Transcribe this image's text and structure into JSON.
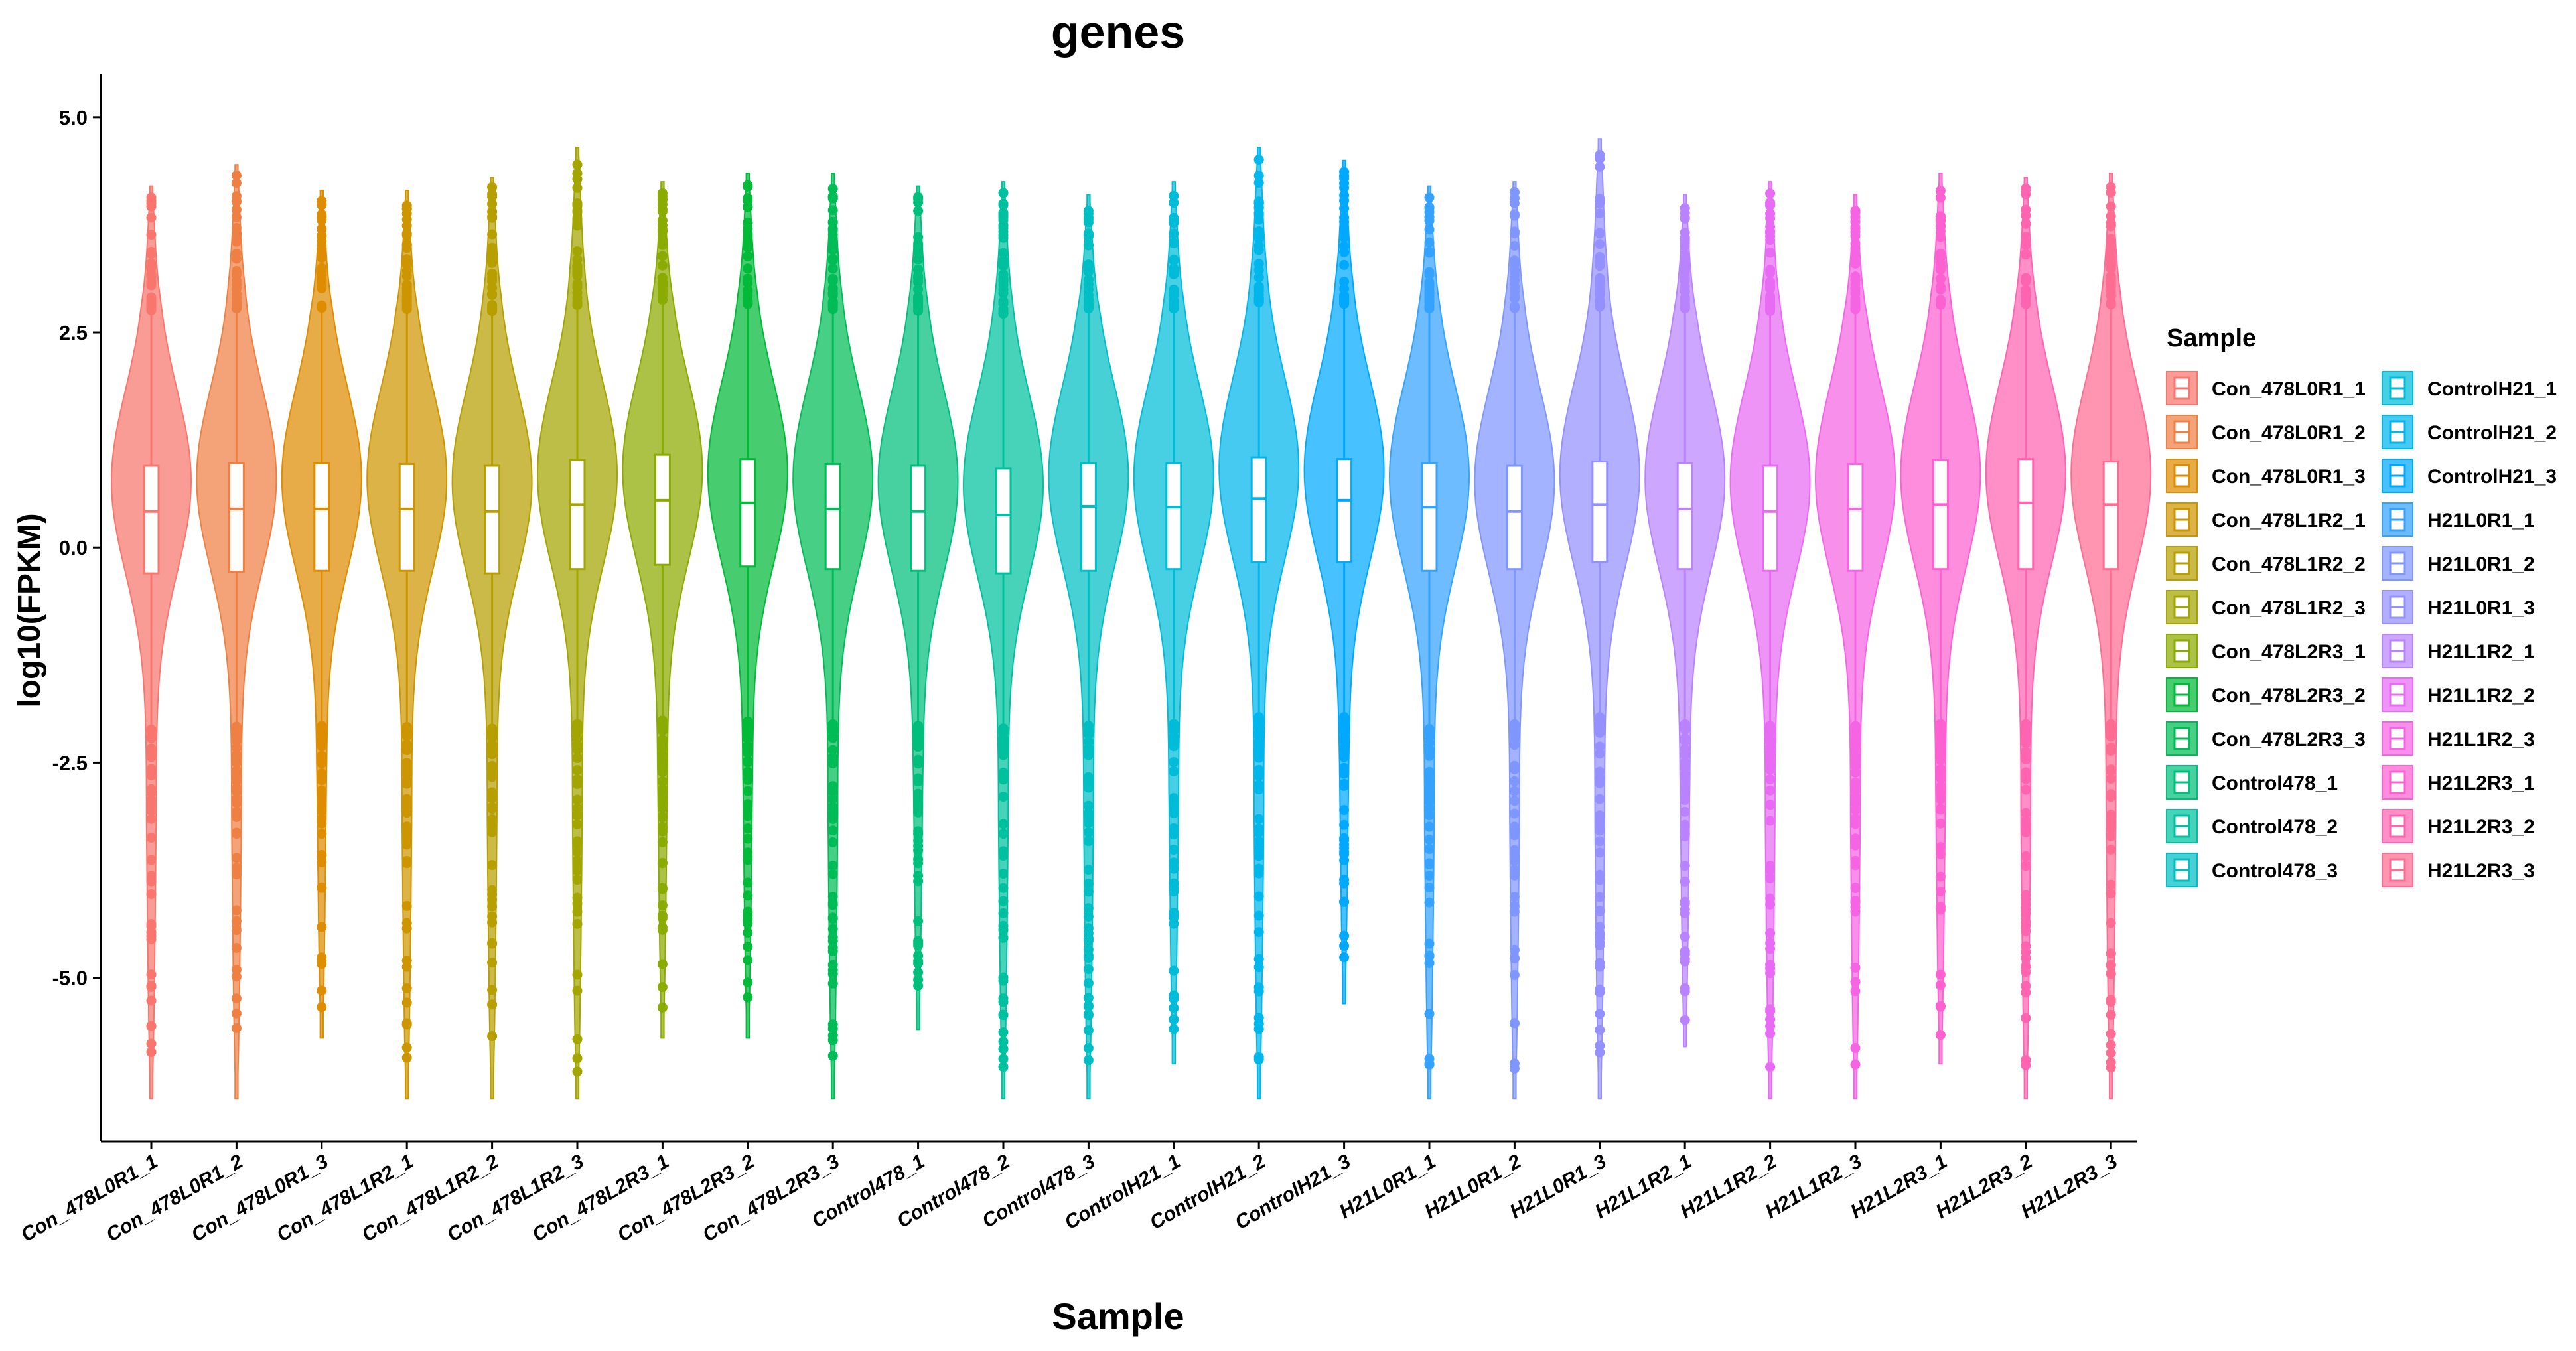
{
  "chart_data": {
    "type": "violin",
    "title": "genes",
    "xlabel": "Sample",
    "ylabel": "log10(FPKM)",
    "ylim": [
      -6.9,
      5.5
    ],
    "yticks": [
      5.0,
      2.5,
      0.0,
      -2.5,
      -5.0
    ],
    "ytick_labels": [
      "5.0",
      "2.5",
      "0.0",
      "-2.5",
      "-5.0"
    ],
    "legend_title": "Sample",
    "legend_position": "right",
    "samples": [
      {
        "name": "Con_478L0R1_1",
        "color": "#F8766D",
        "median": 0.42,
        "q1": -0.3,
        "q3": 0.95,
        "min": -6.4,
        "max": 4.2
      },
      {
        "name": "Con_478L0R1_2",
        "color": "#EE8043",
        "median": 0.45,
        "q1": -0.28,
        "q3": 0.98,
        "min": -6.4,
        "max": 4.45
      },
      {
        "name": "Con_478L0R1_3",
        "color": "#DE8C00",
        "median": 0.45,
        "q1": -0.27,
        "q3": 0.98,
        "min": -5.7,
        "max": 4.15
      },
      {
        "name": "Con_478L1R2_1",
        "color": "#CD9600",
        "median": 0.45,
        "q1": -0.27,
        "q3": 0.97,
        "min": -6.4,
        "max": 4.15
      },
      {
        "name": "Con_478L1R2_2",
        "color": "#B79F00",
        "median": 0.42,
        "q1": -0.3,
        "q3": 0.95,
        "min": -6.4,
        "max": 4.3
      },
      {
        "name": "Con_478L1R2_3",
        "color": "#A3A500",
        "median": 0.5,
        "q1": -0.25,
        "q3": 1.02,
        "min": -6.4,
        "max": 4.65
      },
      {
        "name": "Con_478L2R3_1",
        "color": "#8AAB00",
        "median": 0.55,
        "q1": -0.2,
        "q3": 1.08,
        "min": -5.7,
        "max": 4.25
      },
      {
        "name": "Con_478L2R3_2",
        "color": "#00BA38",
        "median": 0.52,
        "q1": -0.22,
        "q3": 1.03,
        "min": -5.7,
        "max": 4.35
      },
      {
        "name": "Con_478L2R3_3",
        "color": "#00BC56",
        "median": 0.45,
        "q1": -0.25,
        "q3": 0.97,
        "min": -6.4,
        "max": 4.35
      },
      {
        "name": "Control478_1",
        "color": "#00BF7D",
        "median": 0.42,
        "q1": -0.27,
        "q3": 0.95,
        "min": -5.6,
        "max": 4.2
      },
      {
        "name": "Control478_2",
        "color": "#00C19F",
        "median": 0.38,
        "q1": -0.3,
        "q3": 0.92,
        "min": -6.4,
        "max": 4.25
      },
      {
        "name": "Control478_3",
        "color": "#00BFC4",
        "median": 0.48,
        "q1": -0.27,
        "q3": 0.98,
        "min": -6.4,
        "max": 4.1
      },
      {
        "name": "ControlH21_1",
        "color": "#00BCD8",
        "median": 0.47,
        "q1": -0.25,
        "q3": 0.98,
        "min": -6.0,
        "max": 4.25
      },
      {
        "name": "ControlH21_2",
        "color": "#00B6EB",
        "median": 0.57,
        "q1": -0.17,
        "q3": 1.05,
        "min": -6.4,
        "max": 4.65
      },
      {
        "name": "ControlH21_3",
        "color": "#00A9FF",
        "median": 0.55,
        "q1": -0.17,
        "q3": 1.03,
        "min": -5.3,
        "max": 4.5
      },
      {
        "name": "H21L0R1_1",
        "color": "#35A2FF",
        "median": 0.47,
        "q1": -0.27,
        "q3": 0.98,
        "min": -6.4,
        "max": 4.2
      },
      {
        "name": "H21L0R1_2",
        "color": "#7F96FF",
        "median": 0.42,
        "q1": -0.25,
        "q3": 0.95,
        "min": -6.4,
        "max": 4.25
      },
      {
        "name": "H21L0R1_3",
        "color": "#9590FF",
        "median": 0.5,
        "q1": -0.17,
        "q3": 1.0,
        "min": -6.4,
        "max": 4.75
      },
      {
        "name": "H21L1R2_1",
        "color": "#B983FF",
        "median": 0.45,
        "q1": -0.25,
        "q3": 0.98,
        "min": -5.8,
        "max": 4.1
      },
      {
        "name": "H21L1R2_2",
        "color": "#E76BF3",
        "median": 0.42,
        "q1": -0.27,
        "q3": 0.95,
        "min": -6.4,
        "max": 4.25
      },
      {
        "name": "H21L1R2_3",
        "color": "#F564E3",
        "median": 0.45,
        "q1": -0.27,
        "q3": 0.97,
        "min": -6.4,
        "max": 4.1
      },
      {
        "name": "H21L2R3_1",
        "color": "#FD61D1",
        "median": 0.5,
        "q1": -0.25,
        "q3": 1.02,
        "min": -6.0,
        "max": 4.35
      },
      {
        "name": "H21L2R3_2",
        "color": "#FF64B0",
        "median": 0.52,
        "q1": -0.25,
        "q3": 1.03,
        "min": -6.4,
        "max": 4.3
      },
      {
        "name": "H21L2R3_3",
        "color": "#FF6C91",
        "median": 0.5,
        "q1": -0.25,
        "q3": 1.0,
        "min": -6.4,
        "max": 4.35
      }
    ]
  }
}
